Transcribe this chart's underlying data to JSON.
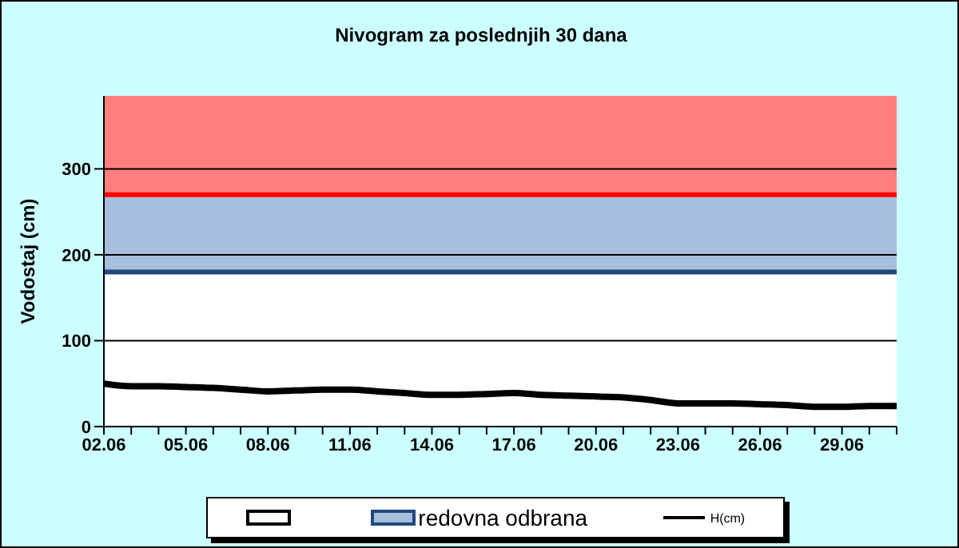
{
  "chart_data": {
    "type": "line",
    "title": "Nivogram za poslednjih 30 dana",
    "ylabel": "Vodostaj (cm)",
    "categories": [
      "02.06",
      null,
      null,
      "05.06",
      null,
      null,
      "08.06",
      null,
      null,
      "11.06",
      null,
      null,
      "14.06",
      null,
      null,
      "17.06",
      null,
      null,
      "20.06",
      null,
      null,
      "23.06",
      null,
      null,
      "26.06",
      null,
      null,
      "29.06",
      null,
      null
    ],
    "series": [
      {
        "name": "H(cm)",
        "color": "#000000",
        "values": [
          50,
          47,
          47,
          46,
          45,
          43,
          41,
          42,
          43,
          43,
          41,
          39,
          37,
          37,
          38,
          39,
          37,
          36,
          35,
          34,
          31,
          27,
          27,
          27,
          26,
          25,
          23,
          23,
          24,
          24
        ]
      }
    ],
    "ylim": [
      0,
      385
    ],
    "yticks": [
      0,
      100,
      200,
      300
    ],
    "grid": "y",
    "legend": "bottom",
    "marker": "none",
    "line_style": "solid",
    "bands": [
      {
        "axis": "y",
        "from": 0,
        "to": 180,
        "color": "#ffffff"
      },
      {
        "axis": "y",
        "from": 180,
        "to": 270,
        "label": "redovna odbrana",
        "color": "#a7bfdd"
      },
      {
        "axis": "y",
        "from": 270,
        "to": 385,
        "color": "#ff7f7f"
      }
    ],
    "ref_lines": [
      {
        "axis": "y",
        "value": 180,
        "color": "#1f497d"
      },
      {
        "axis": "y",
        "value": 270,
        "color": "#ff0000"
      }
    ]
  }
}
